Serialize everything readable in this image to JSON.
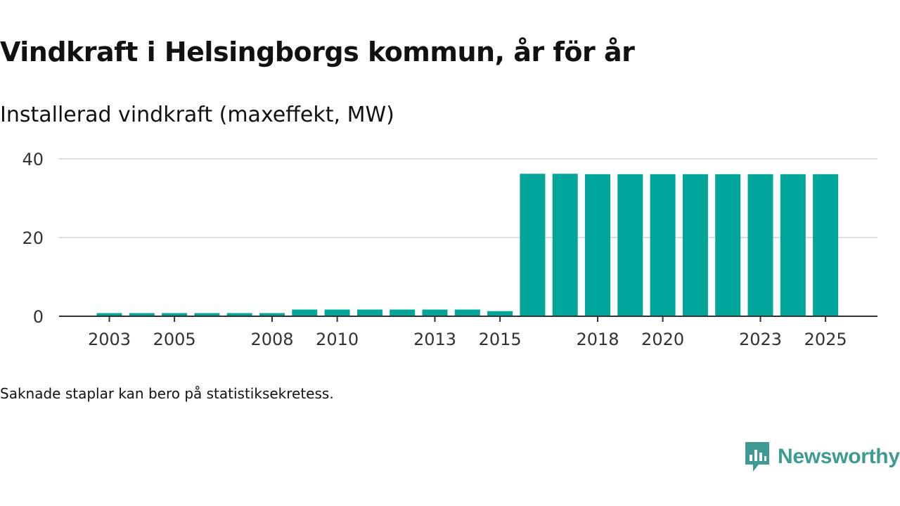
{
  "header": {
    "title": "Vindkraft i Helsingborgs kommun, år för år",
    "subtitle": "Installerad vindkraft (maxeffekt, MW)"
  },
  "footnote": "Saknade staplar kan bero på statistiksekretess.",
  "brand": {
    "name": "Newsworthy",
    "color": "#3f9a93"
  },
  "colors": {
    "bar": "#00a69a",
    "grid": "#dddddd",
    "axis": "#333333"
  },
  "chart_data": {
    "type": "bar",
    "title": "Installerad vindkraft (maxeffekt, MW)",
    "xlabel": "",
    "ylabel": "",
    "ylim": [
      0,
      40
    ],
    "yticks": [
      0,
      20,
      40
    ],
    "grid": true,
    "categories": [
      "2003",
      "2004",
      "2005",
      "2006",
      "2007",
      "2008",
      "2009",
      "2010",
      "2011",
      "2012",
      "2013",
      "2014",
      "2015",
      "2016",
      "2017",
      "2018",
      "2019",
      "2020",
      "2021",
      "2022",
      "2023",
      "2024",
      "2025"
    ],
    "xtick_labels": [
      "2003",
      "2005",
      "2008",
      "2010",
      "2013",
      "2015",
      "2018",
      "2020",
      "2023",
      "2025"
    ],
    "series": [
      {
        "name": "Installerad vindkraft (MW)",
        "values": [
          0.8,
          0.8,
          0.8,
          0.8,
          0.8,
          0.8,
          1.7,
          1.7,
          1.7,
          1.7,
          1.7,
          1.7,
          1.3,
          36.2,
          36.2,
          36.1,
          36.1,
          36.1,
          36.1,
          36.1,
          36.1,
          36.1,
          36.1
        ]
      }
    ]
  }
}
